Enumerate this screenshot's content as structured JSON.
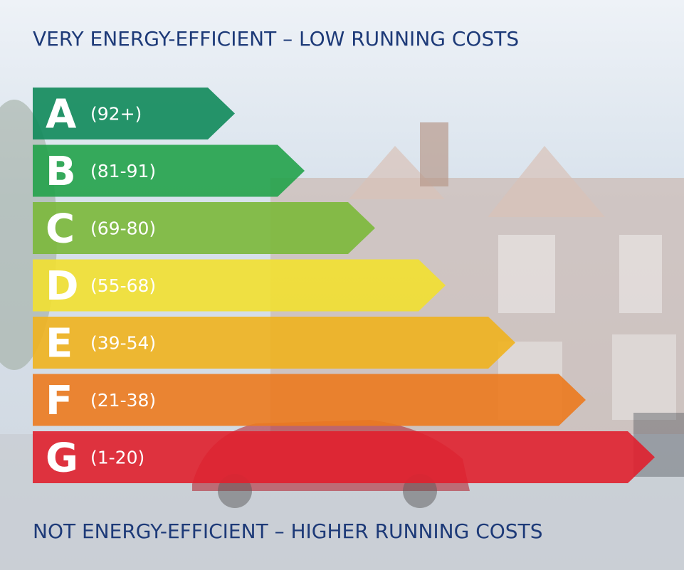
{
  "top_caption": "VERY ENERGY-EFFICIENT – LOW RUNNING COSTS",
  "bottom_caption": "NOT ENERGY-EFFICIENT – HIGHER RUNNING COSTS",
  "bands": [
    {
      "letter": "A",
      "range": "(92+)",
      "color": "#0f8a5a"
    },
    {
      "letter": "B",
      "range": "(81-91)",
      "color": "#22a24a"
    },
    {
      "letter": "C",
      "range": "(69-80)",
      "color": "#7bb83a"
    },
    {
      "letter": "D",
      "range": "(55-68)",
      "color": "#f2e030"
    },
    {
      "letter": "E",
      "range": "(39-54)",
      "color": "#f0b21e"
    },
    {
      "letter": "F",
      "range": "(21-38)",
      "color": "#ec7a1e"
    },
    {
      "letter": "G",
      "range": "(1-20)",
      "color": "#e0202e"
    }
  ]
}
